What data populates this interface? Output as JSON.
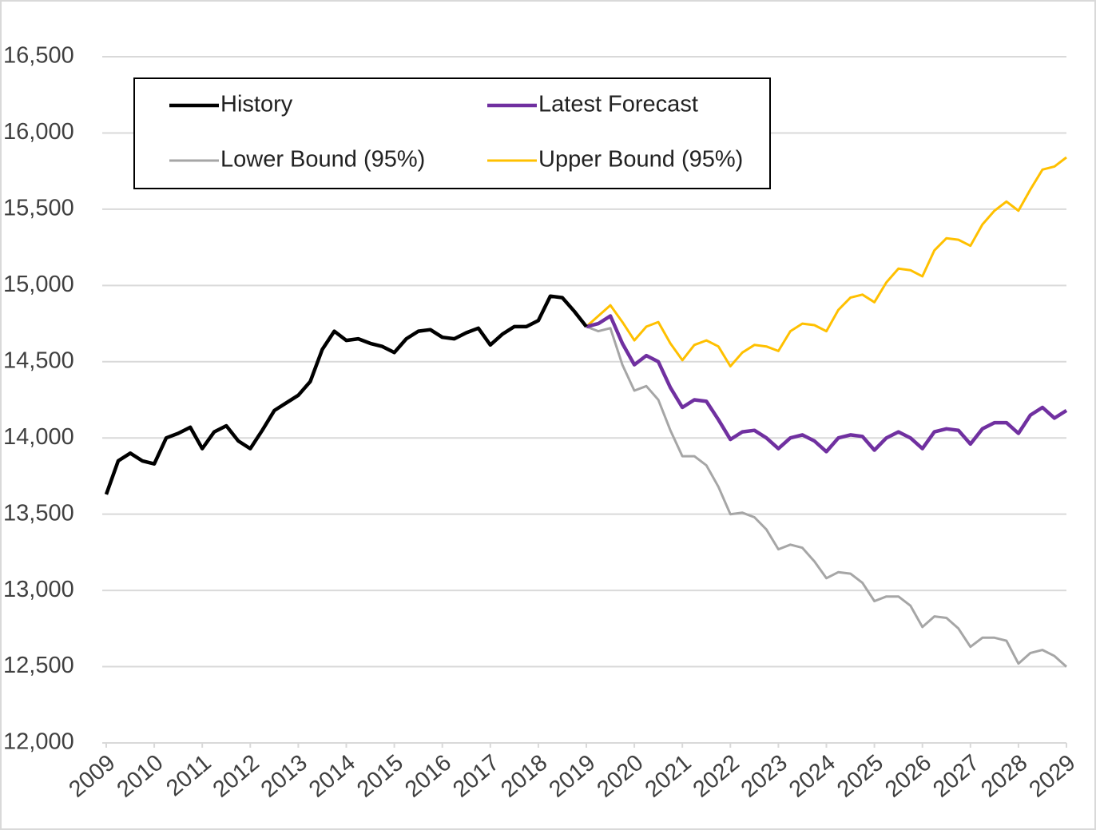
{
  "chart_data": {
    "type": "line",
    "x": [
      2009,
      2009.25,
      2009.5,
      2009.75,
      2010,
      2010.25,
      2010.5,
      2010.75,
      2011,
      2011.25,
      2011.5,
      2011.75,
      2012,
      2012.25,
      2012.5,
      2012.75,
      2013,
      2013.25,
      2013.5,
      2013.75,
      2014,
      2014.25,
      2014.5,
      2014.75,
      2015,
      2015.25,
      2015.5,
      2015.75,
      2016,
      2016.25,
      2016.5,
      2016.75,
      2017,
      2017.25,
      2017.5,
      2017.75,
      2018,
      2018.25,
      2018.5,
      2018.75,
      2019,
      2019.25,
      2019.5,
      2019.75,
      2020,
      2020.25,
      2020.5,
      2020.75,
      2021,
      2021.25,
      2021.5,
      2021.75,
      2022,
      2022.25,
      2022.5,
      2022.75,
      2023,
      2023.25,
      2023.5,
      2023.75,
      2024,
      2024.25,
      2024.5,
      2024.75,
      2025,
      2025.25,
      2025.5,
      2025.75,
      2026,
      2026.25,
      2026.5,
      2026.75,
      2027,
      2027.25,
      2027.5,
      2027.75,
      2028,
      2028.25,
      2028.5,
      2028.75,
      2029
    ],
    "series": [
      {
        "name": "History",
        "color": "#000000",
        "width": 4.5,
        "values": [
          13630,
          13850,
          13900,
          13850,
          13830,
          14000,
          14030,
          14070,
          13930,
          14040,
          14080,
          13980,
          13930,
          14050,
          14180,
          14230,
          14280,
          14370,
          14580,
          14700,
          14640,
          14650,
          14620,
          14600,
          14560,
          14650,
          14700,
          14710,
          14660,
          14650,
          14690,
          14720,
          14610,
          14680,
          14730,
          14730,
          14770,
          14930,
          14920,
          14830,
          14730,
          null,
          null,
          null,
          null,
          null,
          null,
          null,
          null,
          null,
          null,
          null,
          null,
          null,
          null,
          null,
          null,
          null,
          null,
          null,
          null,
          null,
          null,
          null,
          null,
          null,
          null,
          null,
          null,
          null,
          null,
          null,
          null,
          null,
          null,
          null,
          null,
          null,
          null,
          null,
          null
        ]
      },
      {
        "name": "Latest Forecast",
        "color": "#7030a0",
        "width": 4.5,
        "values": [
          null,
          null,
          null,
          null,
          null,
          null,
          null,
          null,
          null,
          null,
          null,
          null,
          null,
          null,
          null,
          null,
          null,
          null,
          null,
          null,
          null,
          null,
          null,
          null,
          null,
          null,
          null,
          null,
          null,
          null,
          null,
          null,
          null,
          null,
          null,
          null,
          null,
          null,
          null,
          null,
          14730,
          14750,
          14800,
          14620,
          14480,
          14540,
          14500,
          14330,
          14200,
          14250,
          14240,
          14120,
          13990,
          14040,
          14050,
          14000,
          13930,
          14000,
          14020,
          13980,
          13910,
          14000,
          14020,
          14010,
          13920,
          14000,
          14040,
          14000,
          13930,
          14040,
          14060,
          14050,
          13960,
          14060,
          14100,
          14100,
          14030,
          14150,
          14200,
          14130,
          14180
        ]
      },
      {
        "name": "Lower Bound (95%)",
        "color": "#a6a6a6",
        "width": 3,
        "values": [
          null,
          null,
          null,
          null,
          null,
          null,
          null,
          null,
          null,
          null,
          null,
          null,
          null,
          null,
          null,
          null,
          null,
          null,
          null,
          null,
          null,
          null,
          null,
          null,
          null,
          null,
          null,
          null,
          null,
          null,
          null,
          null,
          null,
          null,
          null,
          null,
          null,
          null,
          null,
          null,
          14730,
          14700,
          14720,
          14480,
          14310,
          14340,
          14250,
          14050,
          13880,
          13880,
          13820,
          13680,
          13500,
          13510,
          13480,
          13400,
          13270,
          13300,
          13280,
          13190,
          13080,
          13120,
          13110,
          13050,
          12930,
          12960,
          12960,
          12900,
          12760,
          12830,
          12820,
          12750,
          12630,
          12690,
          12690,
          12670,
          12520,
          12590,
          12610,
          12570,
          12500
        ]
      },
      {
        "name": "Upper Bound (95%)",
        "color": "#ffc000",
        "width": 3,
        "values": [
          null,
          null,
          null,
          null,
          null,
          null,
          null,
          null,
          null,
          null,
          null,
          null,
          null,
          null,
          null,
          null,
          null,
          null,
          null,
          null,
          null,
          null,
          null,
          null,
          null,
          null,
          null,
          null,
          null,
          null,
          null,
          null,
          null,
          null,
          null,
          null,
          null,
          null,
          null,
          null,
          14730,
          14800,
          14870,
          14760,
          14640,
          14730,
          14760,
          14620,
          14510,
          14610,
          14640,
          14600,
          14470,
          14560,
          14610,
          14600,
          14570,
          14700,
          14750,
          14740,
          14700,
          14840,
          14920,
          14940,
          14890,
          15020,
          15110,
          15100,
          15060,
          15230,
          15310,
          15300,
          15260,
          15400,
          15490,
          15550,
          15490,
          15630,
          15760,
          15780,
          15840
        ]
      }
    ],
    "xlim": [
      2009,
      2029
    ],
    "xticks": [
      2009,
      2010,
      2011,
      2012,
      2013,
      2014,
      2015,
      2016,
      2017,
      2018,
      2019,
      2020,
      2021,
      2022,
      2023,
      2024,
      2025,
      2026,
      2027,
      2028,
      2029
    ],
    "ylim": [
      12000,
      16500
    ],
    "yticks": [
      {
        "value": 12000,
        "label": "12,000"
      },
      {
        "value": 12500,
        "label": "12,500"
      },
      {
        "value": 13000,
        "label": "13,000"
      },
      {
        "value": 13500,
        "label": "13,500"
      },
      {
        "value": 14000,
        "label": "14,000"
      },
      {
        "value": 14500,
        "label": "14,500"
      },
      {
        "value": 15000,
        "label": "15,000"
      },
      {
        "value": 15500,
        "label": "15,500"
      },
      {
        "value": 16000,
        "label": "16,000"
      },
      {
        "value": 16500,
        "label": "16,500"
      }
    ],
    "grid": true
  }
}
